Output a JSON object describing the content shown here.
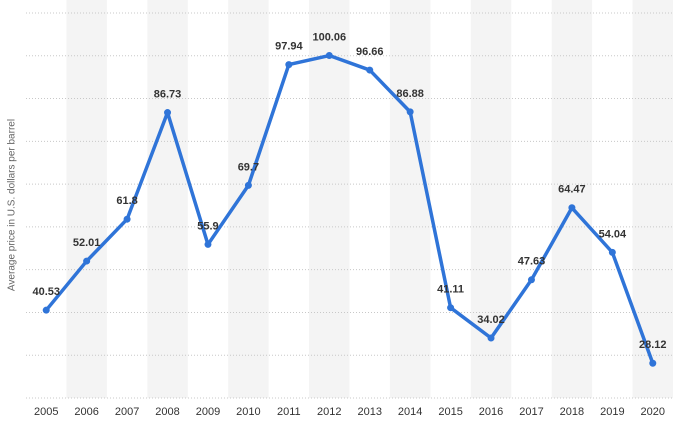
{
  "chart_data": {
    "type": "line",
    "y_axis_label": "Average price in U.S. dollars per barrel",
    "categories": [
      "2005",
      "2006",
      "2007",
      "2008",
      "2009",
      "2010",
      "2011",
      "2012",
      "2013",
      "2014",
      "2015",
      "2016",
      "2017",
      "2018",
      "2019",
      "2020"
    ],
    "values": [
      40.53,
      52.01,
      61.8,
      86.73,
      55.9,
      69.7,
      97.94,
      100.06,
      96.66,
      86.88,
      41.11,
      34.02,
      47.63,
      64.47,
      54.04,
      28.12
    ],
    "color": "#2f74d8",
    "ylim": [
      20,
      110
    ],
    "yticks": [
      20,
      30,
      40,
      50,
      60,
      70,
      80,
      90,
      100,
      110
    ],
    "grid": true
  }
}
